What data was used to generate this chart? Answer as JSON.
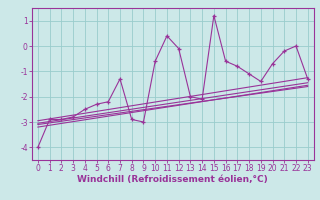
{
  "background_color": "#cce8e8",
  "grid_color": "#99cccc",
  "line_color": "#993399",
  "x_data": [
    0,
    1,
    2,
    3,
    4,
    5,
    6,
    7,
    8,
    9,
    10,
    11,
    12,
    13,
    14,
    15,
    16,
    17,
    18,
    19,
    20,
    21,
    22,
    23
  ],
  "y_data": [
    -4.0,
    -2.9,
    -2.9,
    -2.8,
    -2.5,
    -2.3,
    -2.2,
    -1.3,
    -2.9,
    -3.0,
    -0.6,
    0.4,
    -0.1,
    -2.0,
    -2.1,
    1.2,
    -0.6,
    -0.8,
    -1.1,
    -1.4,
    -0.7,
    -0.2,
    0.0,
    -1.3
  ],
  "trend_lines": [
    {
      "x0": 0,
      "y0": -3.05,
      "x1": 23,
      "y1": -1.45
    },
    {
      "x0": 0,
      "y0": -2.95,
      "x1": 23,
      "y1": -1.25
    },
    {
      "x0": 0,
      "y0": -3.1,
      "x1": 23,
      "y1": -1.6
    },
    {
      "x0": 0,
      "y0": -3.2,
      "x1": 23,
      "y1": -1.55
    }
  ],
  "xlabel": "Windchill (Refroidissement éolien,°C)",
  "ylim": [
    -4.5,
    1.5
  ],
  "xlim": [
    -0.5,
    23.5
  ],
  "yticks": [
    -4,
    -3,
    -2,
    -1,
    0,
    1
  ],
  "xticks": [
    0,
    1,
    2,
    3,
    4,
    5,
    6,
    7,
    8,
    9,
    10,
    11,
    12,
    13,
    14,
    15,
    16,
    17,
    18,
    19,
    20,
    21,
    22,
    23
  ],
  "tick_fontsize": 5.5,
  "xlabel_fontsize": 6.5
}
